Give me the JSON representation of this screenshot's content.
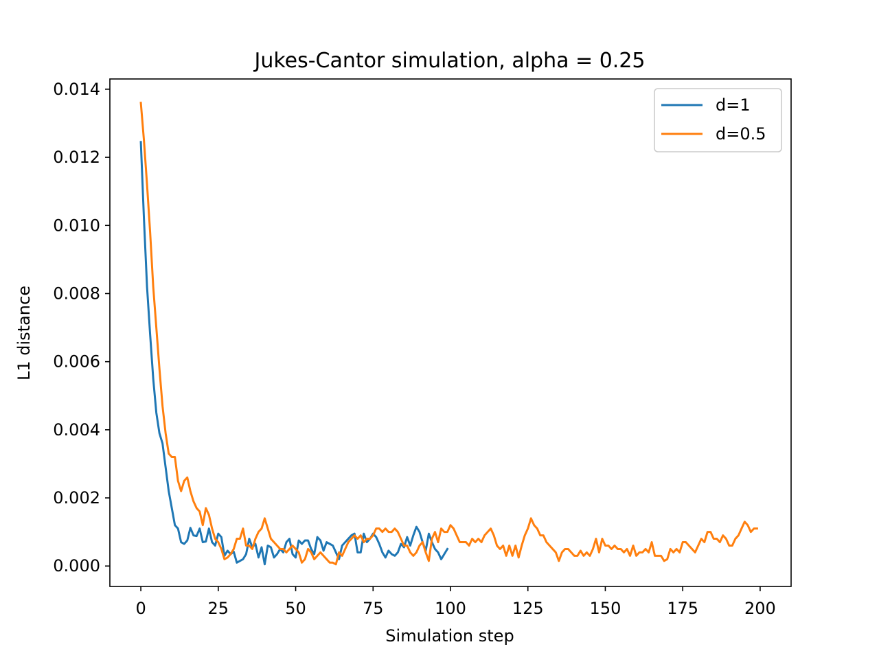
{
  "chart_data": {
    "type": "line",
    "title": "Jukes-Cantor simulation, alpha = 0.25",
    "xlabel": "Simulation step",
    "ylabel": "L1 distance",
    "xlim": [
      -10,
      210
    ],
    "ylim": [
      -0.0006,
      0.0143
    ],
    "xticks": [
      0,
      25,
      50,
      75,
      100,
      125,
      150,
      175,
      200
    ],
    "xtick_labels": [
      "0",
      "25",
      "50",
      "75",
      "100",
      "125",
      "150",
      "175",
      "200"
    ],
    "yticks": [
      0.0,
      0.002,
      0.004,
      0.006,
      0.008,
      0.01,
      0.012,
      0.014
    ],
    "ytick_labels": [
      "0.000",
      "0.002",
      "0.004",
      "0.006",
      "0.008",
      "0.010",
      "0.012",
      "0.014"
    ],
    "grid": false,
    "legend_position": "top-right",
    "series": [
      {
        "name": "d=1",
        "color": "#1f77b4",
        "x": [
          0,
          1,
          2,
          3,
          4,
          5,
          6,
          7,
          8,
          9,
          10,
          11,
          12,
          13,
          14,
          15,
          16,
          17,
          18,
          19,
          20,
          21,
          22,
          23,
          24,
          25,
          26,
          27,
          28,
          29,
          30,
          31,
          32,
          33,
          34,
          35,
          36,
          37,
          38,
          39,
          40,
          41,
          42,
          43,
          44,
          45,
          46,
          47,
          48,
          49,
          50,
          51,
          52,
          53,
          54,
          55,
          56,
          57,
          58,
          59,
          60,
          61,
          62,
          63,
          64,
          65,
          66,
          67,
          68,
          69,
          70,
          71,
          72,
          73,
          74,
          75,
          76,
          77,
          78,
          79,
          80,
          81,
          82,
          83,
          84,
          85,
          86,
          87,
          88,
          89,
          90,
          91,
          92,
          93,
          94,
          95,
          96,
          97,
          98,
          99
        ],
        "y": [
          0.01245,
          0.0102,
          0.0082,
          0.0068,
          0.0055,
          0.0045,
          0.0039,
          0.0036,
          0.0029,
          0.0022,
          0.0017,
          0.0012,
          0.0011,
          0.0007,
          0.00065,
          0.00075,
          0.00112,
          0.0009,
          0.00088,
          0.0011,
          0.0007,
          0.00072,
          0.0011,
          0.0007,
          0.0006,
          0.00095,
          0.00085,
          0.0003,
          0.00045,
          0.00035,
          0.00042,
          0.0001,
          0.00015,
          0.0002,
          0.00035,
          0.0008,
          0.00055,
          0.00065,
          0.00025,
          0.00055,
          5e-05,
          0.0006,
          0.00055,
          0.00025,
          0.00035,
          0.0005,
          0.0004,
          0.0007,
          0.0008,
          0.00035,
          0.00025,
          0.00075,
          0.00065,
          0.00075,
          0.00075,
          0.0005,
          0.00035,
          0.00085,
          0.00075,
          0.00045,
          0.0007,
          0.00065,
          0.0006,
          0.0004,
          0.0002,
          0.0006,
          0.0007,
          0.0008,
          0.0009,
          0.00095,
          0.0004,
          0.0004,
          0.00095,
          0.0007,
          0.0008,
          0.00095,
          0.00085,
          0.00065,
          0.0004,
          0.00025,
          0.00045,
          0.00035,
          0.0003,
          0.0004,
          0.00065,
          0.00055,
          0.00085,
          0.0006,
          0.0009,
          0.00115,
          0.001,
          0.0007,
          0.00045,
          0.00095,
          0.0007,
          0.0005,
          0.0004,
          0.0002,
          0.00035,
          0.0005
        ]
      },
      {
        "name": "d=0.5",
        "color": "#ff7f0e",
        "x": [
          0,
          1,
          2,
          3,
          4,
          5,
          6,
          7,
          8,
          9,
          10,
          11,
          12,
          13,
          14,
          15,
          16,
          17,
          18,
          19,
          20,
          21,
          22,
          23,
          24,
          25,
          26,
          27,
          28,
          29,
          30,
          31,
          32,
          33,
          34,
          35,
          36,
          37,
          38,
          39,
          40,
          41,
          42,
          43,
          44,
          45,
          46,
          47,
          48,
          49,
          50,
          51,
          52,
          53,
          54,
          55,
          56,
          57,
          58,
          59,
          60,
          61,
          62,
          63,
          64,
          65,
          66,
          67,
          68,
          69,
          70,
          71,
          72,
          73,
          74,
          75,
          76,
          77,
          78,
          79,
          80,
          81,
          82,
          83,
          84,
          85,
          86,
          87,
          88,
          89,
          90,
          91,
          92,
          93,
          94,
          95,
          96,
          97,
          98,
          99,
          100,
          101,
          102,
          103,
          104,
          105,
          106,
          107,
          108,
          109,
          110,
          111,
          112,
          113,
          114,
          115,
          116,
          117,
          118,
          119,
          120,
          121,
          122,
          123,
          124,
          125,
          126,
          127,
          128,
          129,
          130,
          131,
          132,
          133,
          134,
          135,
          136,
          137,
          138,
          139,
          140,
          141,
          142,
          143,
          144,
          145,
          146,
          147,
          148,
          149,
          150,
          151,
          152,
          153,
          154,
          155,
          156,
          157,
          158,
          159,
          160,
          161,
          162,
          163,
          164,
          165,
          166,
          167,
          168,
          169,
          170,
          171,
          172,
          173,
          174,
          175,
          176,
          177,
          178,
          179,
          180,
          181,
          182,
          183,
          184,
          185,
          186,
          187,
          188,
          189,
          190,
          191,
          192,
          193,
          194,
          195,
          196,
          197,
          198,
          199
        ],
        "y": [
          0.0136,
          0.0125,
          0.0112,
          0.0098,
          0.0082,
          0.007,
          0.0058,
          0.0047,
          0.0039,
          0.0033,
          0.0032,
          0.0032,
          0.0025,
          0.0022,
          0.0025,
          0.0026,
          0.0022,
          0.0019,
          0.0017,
          0.0016,
          0.0012,
          0.0017,
          0.0015,
          0.0011,
          0.0008,
          0.0007,
          0.0005,
          0.0002,
          0.00025,
          0.00035,
          0.0005,
          0.0008,
          0.0008,
          0.0011,
          0.0006,
          0.0006,
          0.0005,
          0.0008,
          0.001,
          0.0011,
          0.0014,
          0.0011,
          0.0008,
          0.0007,
          0.0006,
          0.0005,
          0.0005,
          0.0004,
          0.0005,
          0.0006,
          0.0005,
          0.0004,
          0.0001,
          0.0002,
          0.0005,
          0.0004,
          0.0002,
          0.0003,
          0.0004,
          0.0003,
          0.0002,
          0.0001,
          0.0001,
          5e-05,
          0.0004,
          0.0003,
          0.0005,
          0.0007,
          0.0008,
          0.0009,
          0.0008,
          0.0009,
          0.0007,
          0.0008,
          0.0008,
          0.0009,
          0.0011,
          0.0011,
          0.001,
          0.0011,
          0.001,
          0.001,
          0.0011,
          0.001,
          0.0008,
          0.0006,
          0.0006,
          0.0004,
          0.0003,
          0.0004,
          0.0006,
          0.0007,
          0.0004,
          0.00015,
          0.0008,
          0.001,
          0.0007,
          0.0011,
          0.001,
          0.001,
          0.0012,
          0.0011,
          0.0009,
          0.0007,
          0.0007,
          0.0007,
          0.0006,
          0.0008,
          0.0007,
          0.0008,
          0.0007,
          0.0009,
          0.001,
          0.0011,
          0.0009,
          0.0006,
          0.0005,
          0.0006,
          0.0003,
          0.0006,
          0.0003,
          0.0006,
          0.00025,
          0.0006,
          0.0009,
          0.0011,
          0.0014,
          0.0012,
          0.0011,
          0.0009,
          0.0009,
          0.0007,
          0.0006,
          0.0005,
          0.0004,
          0.00015,
          0.0004,
          0.0005,
          0.0005,
          0.0004,
          0.0003,
          0.0003,
          0.00045,
          0.0003,
          0.0004,
          0.0003,
          0.0005,
          0.0008,
          0.0004,
          0.0008,
          0.0006,
          0.0006,
          0.0005,
          0.0006,
          0.0005,
          0.0005,
          0.0004,
          0.0005,
          0.0003,
          0.0006,
          0.0003,
          0.0004,
          0.0004,
          0.0005,
          0.0004,
          0.0007,
          0.0003,
          0.0003,
          0.0003,
          0.00015,
          0.0002,
          0.0005,
          0.0004,
          0.0005,
          0.0004,
          0.0007,
          0.0007,
          0.0006,
          0.0005,
          0.0004,
          0.0006,
          0.0008,
          0.0007,
          0.001,
          0.001,
          0.0008,
          0.0008,
          0.0007,
          0.0009,
          0.0008,
          0.0006,
          0.0006,
          0.0008,
          0.0009,
          0.0011,
          0.0013,
          0.0012,
          0.001,
          0.0011,
          0.0011
        ]
      }
    ]
  }
}
